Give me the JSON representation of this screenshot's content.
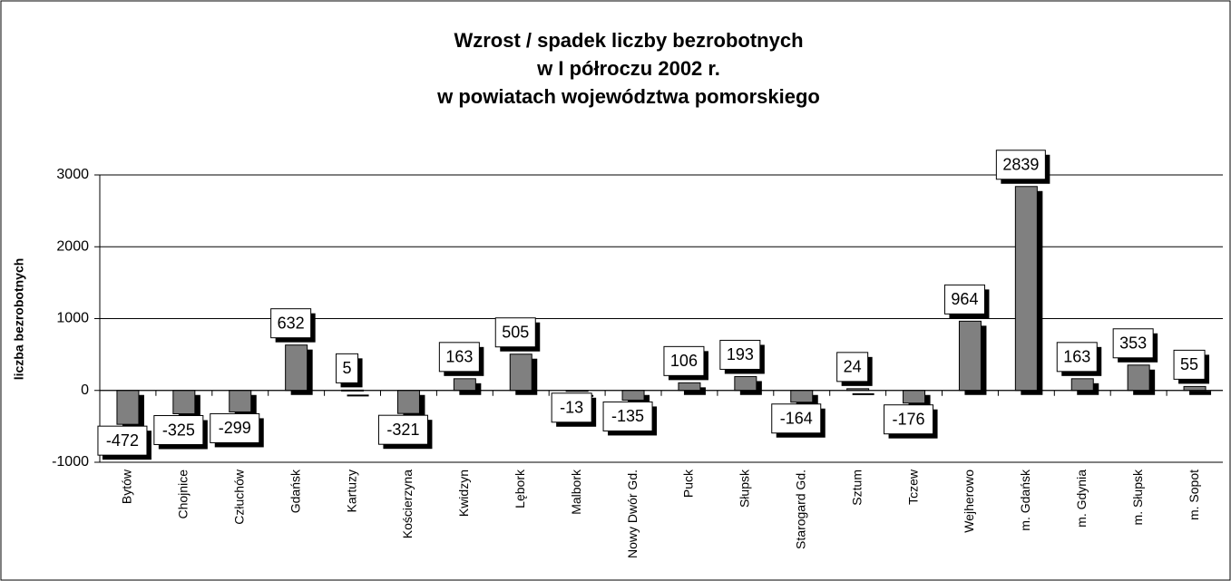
{
  "chart_data": {
    "type": "bar",
    "title": [
      "Wzrost / spadek liczby bezrobotnych",
      "w I półroczu 2002 r.",
      "w powiatach województwa pomorskiego"
    ],
    "y_label": "liczba bezrobotnych",
    "categories": [
      "Bytów",
      "Chojnice",
      "Człuchów",
      "Gdańsk",
      "Kartuzy",
      "Kościerzyna",
      "Kwidzyn",
      "Lębork",
      "Malbork",
      "Nowy Dwór Gd.",
      "Puck",
      "Słupsk",
      "Starogard Gd.",
      "Sztum",
      "Tczew",
      "Wejherowo",
      "m. Gdańsk",
      "m. Gdynia",
      "m. Słupsk",
      "m. Sopot"
    ],
    "values": [
      -472,
      -325,
      -299,
      632,
      5,
      -321,
      163,
      505,
      -13,
      -135,
      106,
      193,
      -164,
      24,
      -176,
      964,
      2839,
      163,
      353,
      55
    ],
    "color": "#808080",
    "ylim": [
      -1000,
      3000
    ],
    "yticks": [
      -1000,
      0,
      1000,
      2000,
      3000
    ],
    "grid": true
  }
}
